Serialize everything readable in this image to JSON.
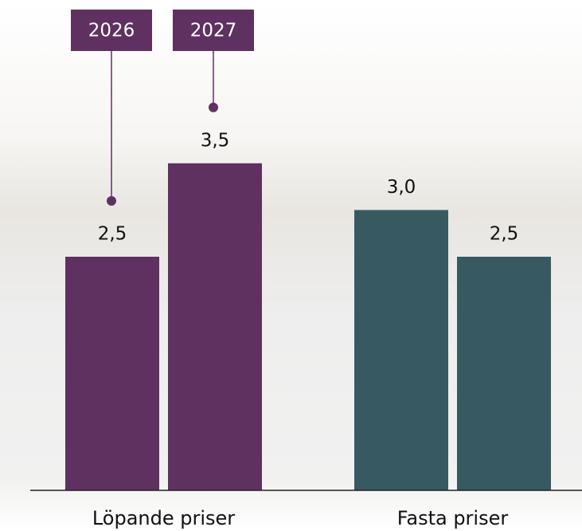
{
  "chart_data": {
    "type": "bar",
    "categories": [
      "Löpande priser",
      "Fasta priser"
    ],
    "category_colors": [
      "#5f3160",
      "#375a62"
    ],
    "series": [
      {
        "name": "2026",
        "values": [
          2.5,
          3.0
        ],
        "value_labels": [
          "2,5",
          "3,0"
        ]
      },
      {
        "name": "2027",
        "values": [
          3.5,
          2.5
        ],
        "value_labels": [
          "3,5",
          "2,5"
        ]
      }
    ],
    "ylim": [
      0,
      5
    ]
  }
}
